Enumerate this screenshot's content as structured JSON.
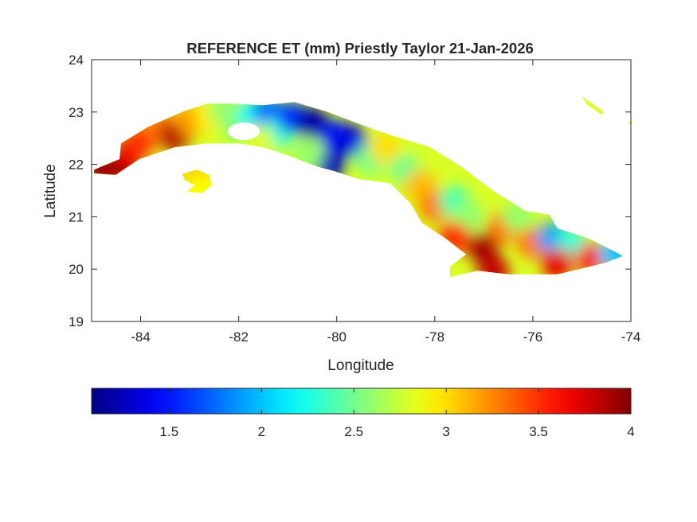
{
  "chart_data": {
    "type": "heatmap",
    "title": "REFERENCE ET (mm) Priestly Taylor 21-Jan-2026",
    "xlabel": "Longitude",
    "ylabel": "Latitude",
    "xlim": [
      -85,
      -74
    ],
    "ylim": [
      19,
      24
    ],
    "xticks": [
      "-84",
      "-82",
      "-80",
      "-78",
      "-76",
      "-74"
    ],
    "xtick_values": [
      -84,
      -82,
      -80,
      -78,
      -76,
      -74
    ],
    "yticks": [
      "19",
      "20",
      "21",
      "22",
      "23",
      "24"
    ],
    "ytick_values": [
      19,
      20,
      21,
      22,
      23,
      24
    ],
    "colormap": "jet",
    "clim": [
      1.08,
      4
    ],
    "colorbar": {
      "location": "bottom",
      "ticks": [
        "1.5",
        "2",
        "2.5",
        "3",
        "3.5",
        "4"
      ],
      "tick_values": [
        1.5,
        2,
        2.5,
        3,
        3.5,
        4
      ]
    },
    "base_value": 2.8,
    "samples": [
      [
        -84.8,
        21.88,
        3.95
      ],
      [
        -84.4,
        21.95,
        3.9
      ],
      [
        -84.2,
        22.25,
        3.7
      ],
      [
        -84.0,
        22.45,
        3.5
      ],
      [
        -83.6,
        22.7,
        3.3
      ],
      [
        -83.3,
        22.55,
        3.85
      ],
      [
        -83.0,
        22.85,
        3.2
      ],
      [
        -82.6,
        22.95,
        2.95
      ],
      [
        -82.3,
        23.05,
        2.6
      ],
      [
        -82.0,
        22.7,
        2.55
      ],
      [
        -81.7,
        22.95,
        2.2
      ],
      [
        -81.4,
        23.0,
        1.75
      ],
      [
        -81.2,
        22.6,
        2.3
      ],
      [
        -80.9,
        22.9,
        1.6
      ],
      [
        -80.5,
        22.8,
        1.2
      ],
      [
        -80.0,
        22.55,
        1.5
      ],
      [
        -79.7,
        22.45,
        1.35
      ],
      [
        -80.15,
        22.0,
        1.25
      ],
      [
        -80.6,
        22.2,
        2.6
      ],
      [
        -81.6,
        22.45,
        2.8
      ],
      [
        -79.3,
        22.1,
        2.5
      ],
      [
        -79.0,
        22.3,
        3.0
      ],
      [
        -78.6,
        21.9,
        2.5
      ],
      [
        -78.3,
        21.6,
        3.1
      ],
      [
        -78.0,
        21.2,
        3.3
      ],
      [
        -77.6,
        21.3,
        2.4
      ],
      [
        -77.3,
        21.0,
        2.6
      ],
      [
        -77.6,
        20.6,
        3.5
      ],
      [
        -77.0,
        20.4,
        3.9
      ],
      [
        -76.6,
        20.8,
        3.3
      ],
      [
        -76.3,
        21.0,
        2.6
      ],
      [
        -76.0,
        20.5,
        3.3
      ],
      [
        -75.6,
        20.6,
        1.9
      ],
      [
        -75.2,
        20.5,
        2.3
      ],
      [
        -75.5,
        20.1,
        3.7
      ],
      [
        -74.8,
        20.2,
        3.6
      ],
      [
        -74.35,
        20.3,
        2.0
      ],
      [
        -76.8,
        19.95,
        3.8
      ],
      [
        -82.85,
        21.7,
        3.2
      ],
      [
        -82.8,
        21.55,
        2.9
      ]
    ]
  }
}
